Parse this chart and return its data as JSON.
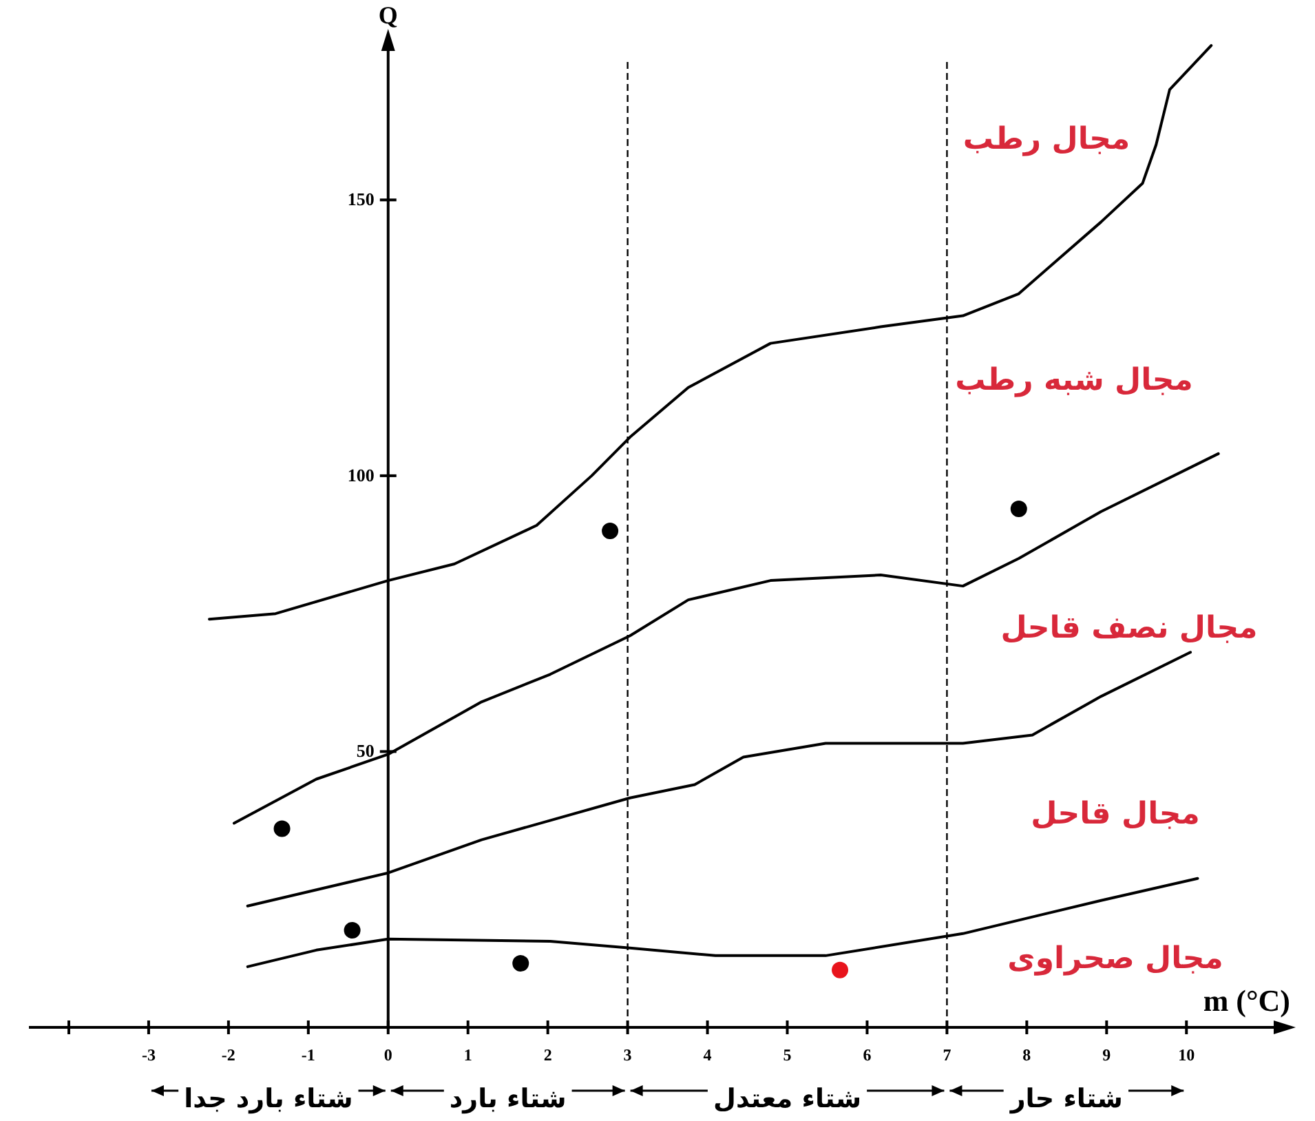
{
  "chart_data": {
    "type": "line",
    "xlabel": "m (°C)",
    "ylabel": "Q",
    "xlim": [
      -4.5,
      11.3
    ],
    "ylim": [
      0,
      180
    ],
    "xticks": [
      {
        "value": -4,
        "label": null
      },
      -3,
      -2,
      -1,
      0,
      1,
      2,
      3,
      4,
      5,
      6,
      7,
      8,
      9,
      10
    ],
    "yticks": [
      50,
      100,
      150
    ],
    "series": [
      {
        "color": "#000000",
        "x": [
          -2.24,
          -1.41,
          0,
          0.83,
          1.86,
          2.55,
          3.03,
          3.76,
          4.79,
          6.17,
          7.2,
          7.9,
          8.93,
          9.45,
          9.62,
          9.79,
          10.31
        ],
        "values": [
          74,
          75,
          81,
          84,
          91,
          100,
          107,
          116,
          124,
          127,
          129,
          133,
          146,
          153,
          160,
          170,
          178
        ]
      },
      {
        "color": "#000000",
        "x": [
          -1.93,
          -0.9,
          0,
          1.17,
          2.03,
          3.03,
          3.76,
          4.79,
          6.17,
          7.2,
          7.9,
          8.93,
          10.4
        ],
        "values": [
          37,
          45,
          49.5,
          59,
          64,
          71,
          77.5,
          81,
          82,
          80,
          85,
          93.5,
          104
        ]
      },
      {
        "color": "#000000",
        "x": [
          -1.76,
          0,
          1.17,
          3.03,
          3.84,
          4.45,
          5.48,
          7.2,
          8.07,
          8.93,
          10.05
        ],
        "values": [
          22,
          28,
          34,
          41.6,
          44,
          49,
          51.5,
          51.5,
          53,
          60,
          68
        ]
      },
      {
        "color": "#000000",
        "x": [
          -1.76,
          -0.9,
          0,
          2.03,
          3.03,
          4.1,
          5.48,
          7.2,
          8.93,
          10.14
        ],
        "values": [
          11,
          14,
          16,
          15.6,
          14.4,
          13,
          13,
          17,
          23,
          27
        ]
      },
      {
        "type": "scatter",
        "x": [
          -1.33,
          -0.45,
          1.66,
          2.78,
          7.9,
          5.66
        ],
        "values": [
          36,
          17.6,
          11.6,
          90,
          94,
          10.4
        ],
        "colors": [
          "#000000",
          "#000000",
          "#000000",
          "#000000",
          "#000000",
          "#e8141c"
        ]
      }
    ],
    "ref_lines": [
      {
        "axis": "x",
        "value": 3
      },
      {
        "axis": "x",
        "value": 7
      }
    ],
    "annotations": [
      "شتاء بارد جدا",
      "شتاء بارد",
      "شتاء معتدل",
      "شتاء حار",
      "مجال رطب",
      "مجال شبه رطب",
      "مجال نصف قاحل",
      "مجال قاحل",
      "مجال صحراوى"
    ]
  }
}
